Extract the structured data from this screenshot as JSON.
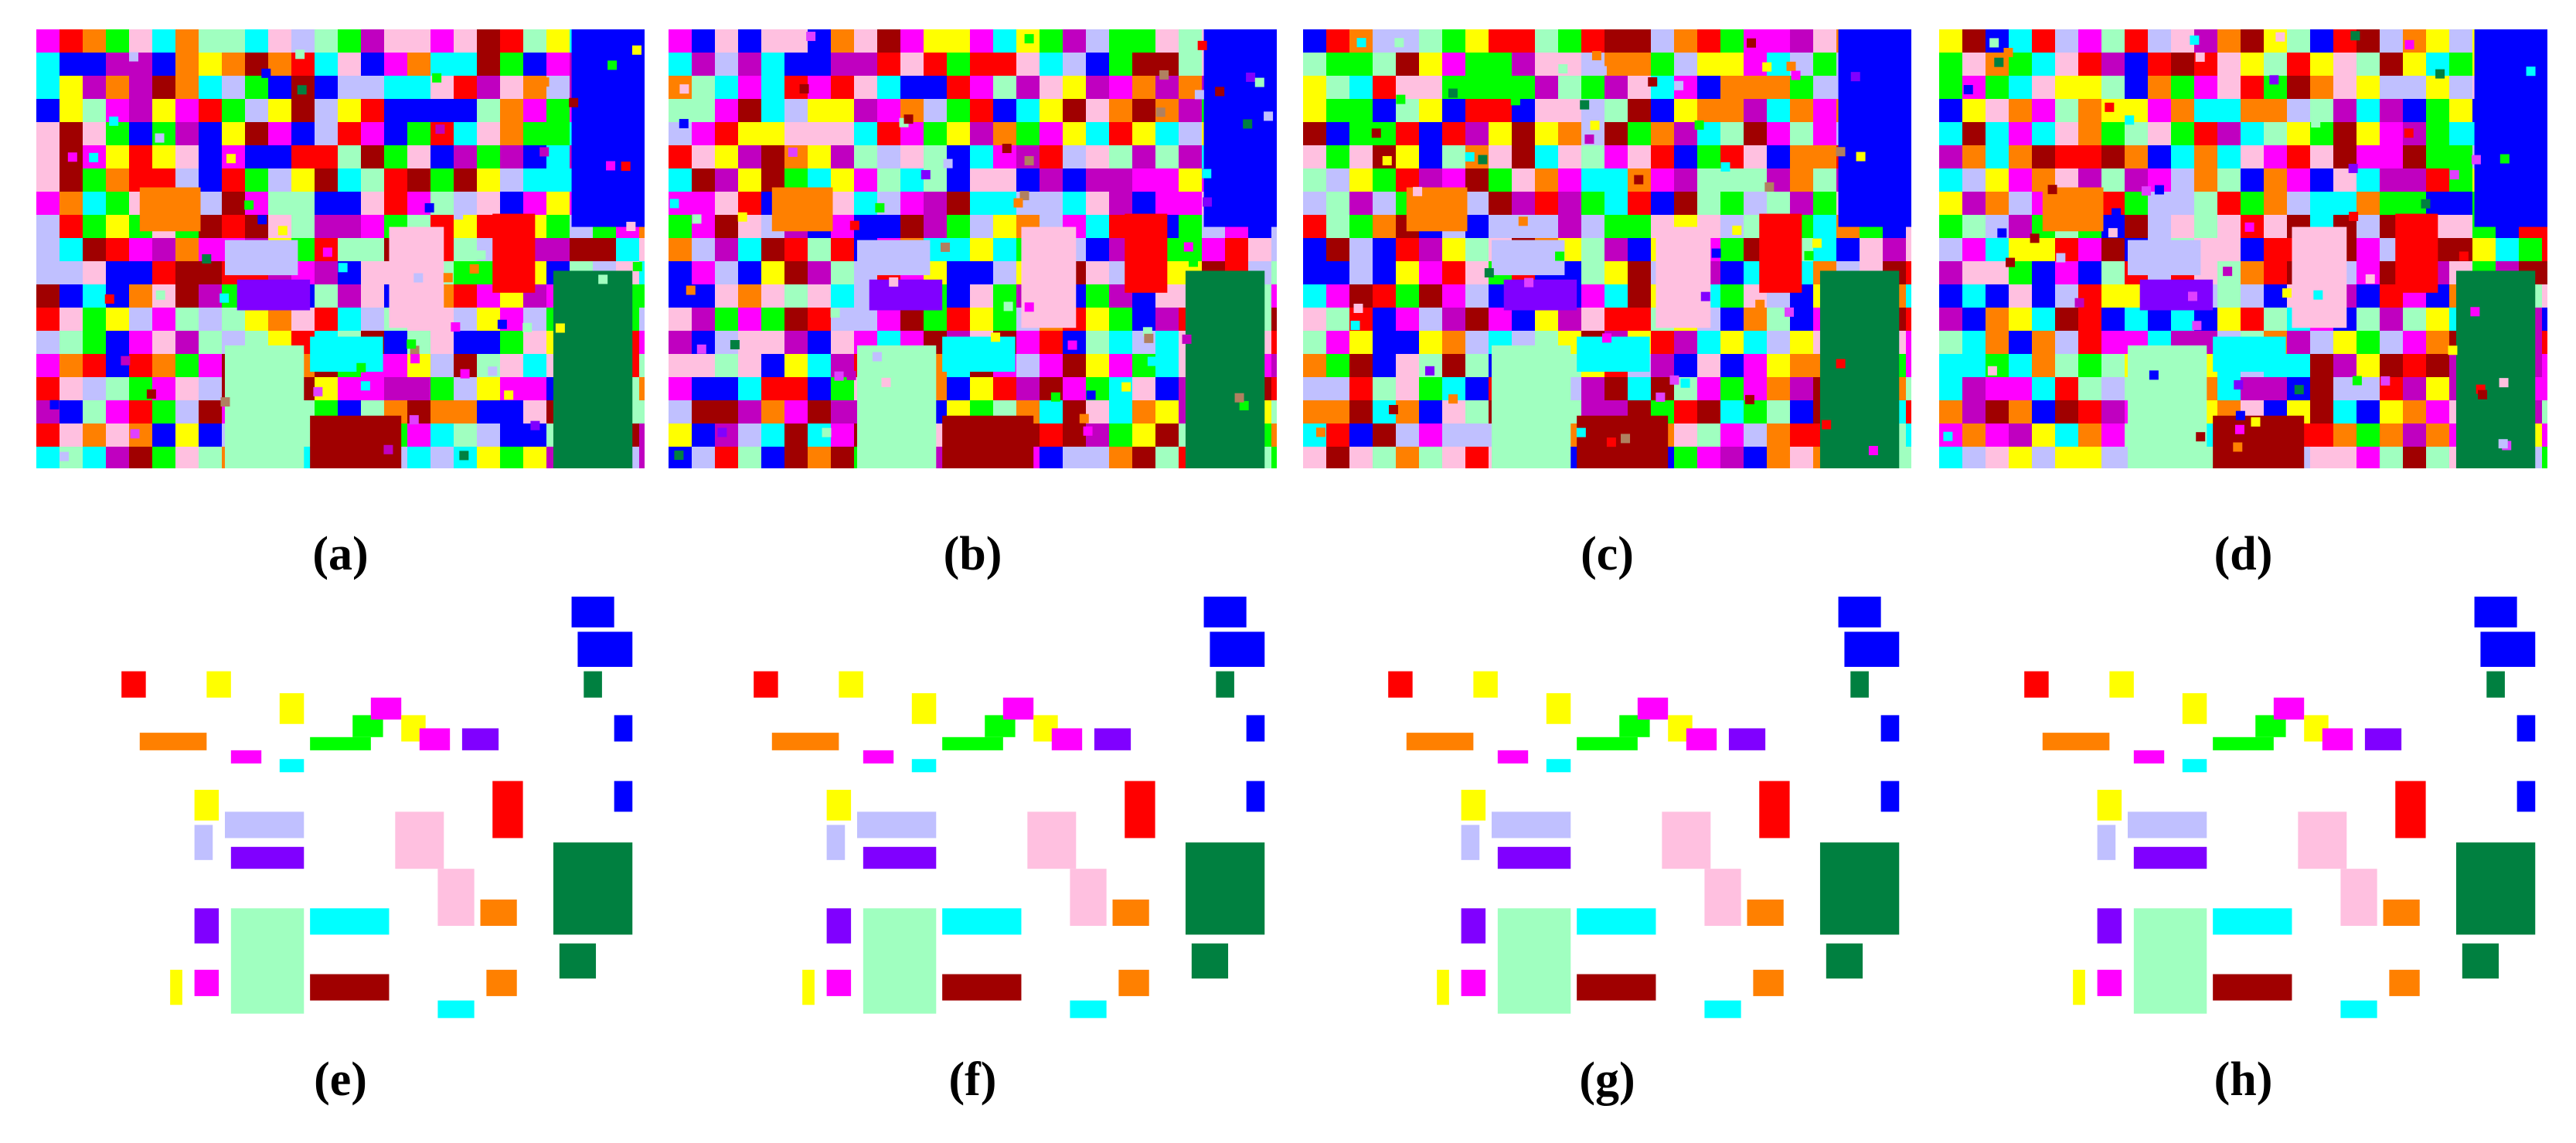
{
  "figure": {
    "panels": [
      {
        "label": "(a)",
        "kind": "full"
      },
      {
        "label": "(b)",
        "kind": "full"
      },
      {
        "label": "(c)",
        "kind": "full"
      },
      {
        "label": "(d)",
        "kind": "full"
      },
      {
        "label": "(e)",
        "kind": "masked"
      },
      {
        "label": "(f)",
        "kind": "masked"
      },
      {
        "label": "(g)",
        "kind": "masked"
      },
      {
        "label": "(h)",
        "kind": "masked"
      }
    ]
  }
}
